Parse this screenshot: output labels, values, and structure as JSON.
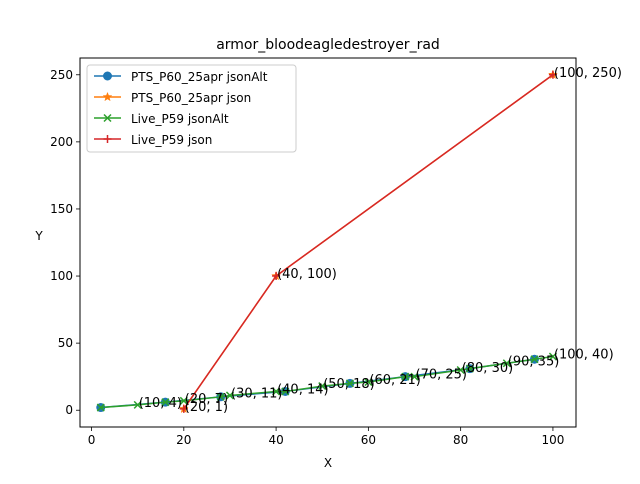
{
  "chart_data": {
    "type": "line",
    "title": "armor_bloodeagledestroyer_rad",
    "xlabel": "X",
    "ylabel": "Y",
    "xlim": [
      -2.5,
      105
    ],
    "ylim": [
      -12.5,
      262.5
    ],
    "x_ticks": [
      0,
      20,
      40,
      60,
      80,
      100
    ],
    "y_ticks": [
      0,
      50,
      100,
      150,
      200,
      250
    ],
    "grid": false,
    "legend_position": "upper-left",
    "series": [
      {
        "name": "PTS_P60_25apr jsonAlt",
        "color": "#1f77b4",
        "marker": "circle",
        "points": [
          [
            2,
            2
          ],
          [
            16,
            6
          ],
          [
            28,
            10
          ],
          [
            42,
            14
          ],
          [
            56,
            20
          ],
          [
            68,
            25
          ],
          [
            82,
            31
          ],
          [
            96,
            38
          ]
        ]
      },
      {
        "name": "PTS_P60_25apr json",
        "color": "#ff7f0e",
        "marker": "star",
        "points": [
          [
            20,
            1
          ],
          [
            40,
            100
          ],
          [
            100,
            250
          ]
        ]
      },
      {
        "name": "Live_P59 jsonAlt",
        "color": "#2ca02c",
        "marker": "x",
        "points": [
          [
            2,
            2
          ],
          [
            10,
            4
          ],
          [
            16,
            6
          ],
          [
            20,
            7
          ],
          [
            28,
            10
          ],
          [
            30,
            11
          ],
          [
            40,
            14
          ],
          [
            42,
            14
          ],
          [
            50,
            18
          ],
          [
            56,
            20
          ],
          [
            60,
            21
          ],
          [
            68,
            25
          ],
          [
            70,
            25
          ],
          [
            80,
            30
          ],
          [
            82,
            31
          ],
          [
            90,
            35
          ],
          [
            96,
            38
          ],
          [
            100,
            40
          ]
        ]
      },
      {
        "name": "Live_P59 json",
        "color": "#d62728",
        "marker": "plus",
        "points": [
          [
            20,
            1
          ],
          [
            40,
            100
          ],
          [
            100,
            250
          ]
        ]
      }
    ],
    "annotations": [
      {
        "x": 10,
        "y": 4,
        "text": "(10, 4)"
      },
      {
        "x": 20,
        "y": 7,
        "text": "(20, 7)"
      },
      {
        "x": 20,
        "y": 1,
        "text": "(20, 1)"
      },
      {
        "x": 30,
        "y": 11,
        "text": "(30, 11)"
      },
      {
        "x": 40,
        "y": 14,
        "text": "(40, 14)"
      },
      {
        "x": 40,
        "y": 100,
        "text": "(40, 100)"
      },
      {
        "x": 50,
        "y": 18,
        "text": "(50, 18)"
      },
      {
        "x": 60,
        "y": 21,
        "text": "(60, 21)"
      },
      {
        "x": 70,
        "y": 25,
        "text": "(70, 25)"
      },
      {
        "x": 80,
        "y": 30,
        "text": "(80, 30)"
      },
      {
        "x": 90,
        "y": 35,
        "text": "(90, 35)"
      },
      {
        "x": 100,
        "y": 40,
        "text": "(100, 40)"
      },
      {
        "x": 100,
        "y": 250,
        "text": "(100, 250)"
      }
    ]
  }
}
